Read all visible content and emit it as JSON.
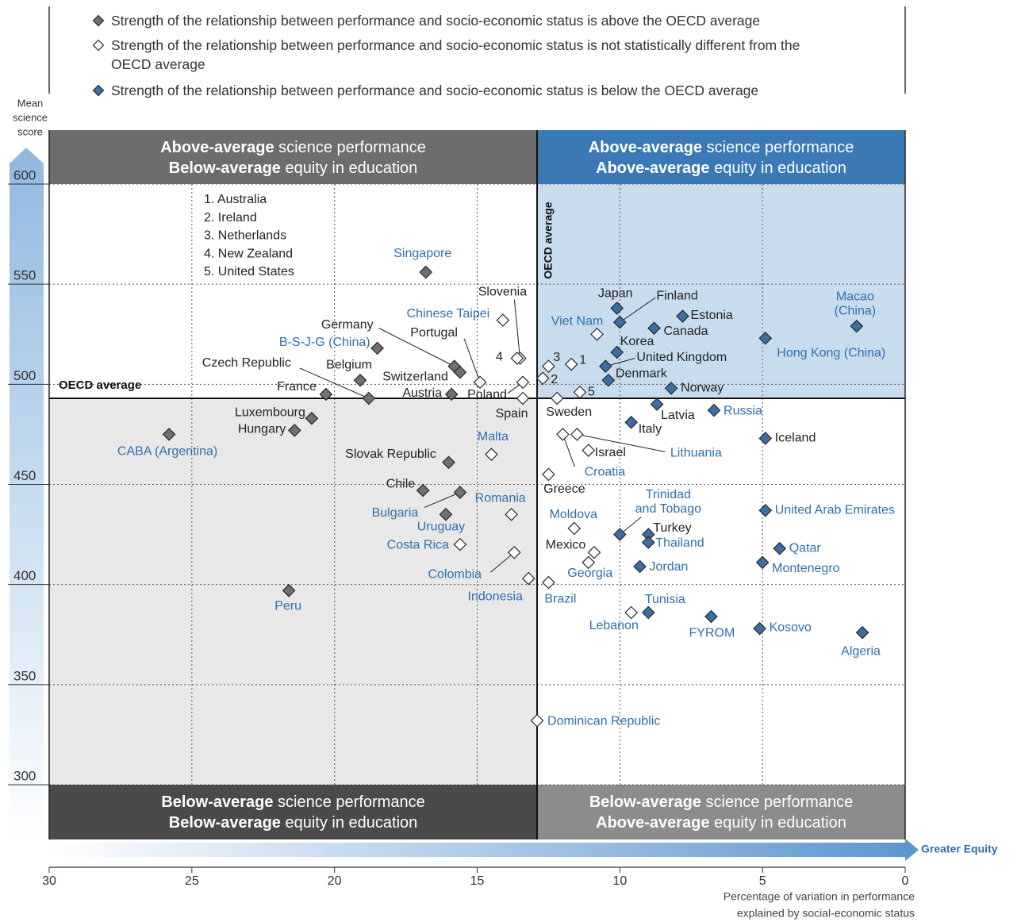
{
  "chart_data": {
    "type": "scatter",
    "legend": "top",
    "xlim": [
      30,
      0
    ],
    "xticks": [
      30,
      25,
      20,
      15,
      10,
      5,
      0
    ],
    "ylim": [
      300,
      600
    ],
    "yticks": [
      300,
      350,
      400,
      450,
      500,
      550,
      600
    ],
    "grid": true,
    "ylabel": [
      "Mean",
      "science",
      "score"
    ],
    "xlabel": [
      "Percentage of variation in performance",
      "explained by social-economic status"
    ],
    "x_arrow_label": "Greater Equity",
    "oecd_average": {
      "x": 12.9,
      "y": 493
    },
    "oecd_average_labels": {
      "horizontal": "OECD average",
      "vertical": "OECD average"
    },
    "key": [
      "1. Australia",
      "2. Ireland",
      "3. Netherlands",
      "4. New Zealand",
      "5. United States"
    ],
    "quadrants": [
      {
        "lines": [
          [
            "Above-average",
            " science performance"
          ],
          [
            "Below-average",
            " equity in education"
          ]
        ],
        "banner_color": "#6d6d6d",
        "fill": "#ffffff"
      },
      {
        "lines": [
          [
            "Above-average",
            " science performance"
          ],
          [
            "Above-average",
            " equity in education"
          ]
        ],
        "banner_color": "#3b78b6",
        "fill": "#c9dcee"
      },
      {
        "lines": [
          [
            "Below-average",
            " science performance"
          ],
          [
            "Below-average",
            " equity in education"
          ]
        ],
        "banner_color": "#4a4a4a",
        "fill": "#e8e8e8"
      },
      {
        "lines": [
          [
            "Below-average",
            " science performance"
          ],
          [
            "Above-average",
            " equity in education"
          ]
        ],
        "banner_color": "#8c8c8c",
        "fill": "#ffffff"
      }
    ],
    "series": [
      {
        "name": "Strength of the relationship between performance and socio-economic status is above the OECD average",
        "color": "#707070",
        "labels": [
          "Singapore",
          "B-S-J-G (China)",
          "Germany",
          "Switzerland",
          "Belgium",
          "Czech Republic",
          "France",
          "Austria",
          "Luxembourg",
          "Hungary",
          "CABA (Argentina)",
          "Slovak Republic",
          "Chile",
          "Bulgaria",
          "Uruguay",
          "Peru"
        ],
        "label_colors": [
          "#2f6fae",
          "#2f6fae",
          "#222222",
          "#222222",
          "#222222",
          "#222222",
          "#222222",
          "#222222",
          "#222222",
          "#222222",
          "#2f6fae",
          "#222222",
          "#222222",
          "#2f6fae",
          "#2f6fae",
          "#2f6fae"
        ],
        "x": [
          16.8,
          18.5,
          15.8,
          15.6,
          19.1,
          18.8,
          20.3,
          15.9,
          20.8,
          21.4,
          25.8,
          16.0,
          16.9,
          15.6,
          16.1,
          21.6
        ],
        "values": [
          556,
          518,
          509,
          506,
          502,
          493,
          495,
          495,
          483,
          477,
          475,
          461,
          447,
          446,
          435,
          397
        ]
      },
      {
        "name": "Strength of the relationship between performance and socio-economic status is not statistically different from the OECD average",
        "color": "#ffffff",
        "labels": [
          "Slovenia",
          "Chinese Taipei",
          "Portugal",
          "4",
          "Poland",
          "Spain",
          "2",
          "3",
          "1",
          "5",
          "Sweden",
          "Viet Nam",
          "Malta",
          "Croatia",
          "Lithuania",
          "Israel",
          "Greece",
          "Romania",
          "Moldova",
          "Costa Rica",
          "Mexico",
          "Georgia",
          "Colombia",
          "Indonesia",
          "Brazil",
          "Lebanon",
          "Dominican Republic"
        ],
        "label_colors": [
          "#222222",
          "#2f6fae",
          "#222222",
          "#222222",
          "#222222",
          "#222222",
          "#222222",
          "#222222",
          "#222222",
          "#222222",
          "#222222",
          "#2f6fae",
          "#2f6fae",
          "#2f6fae",
          "#2f6fae",
          "#222222",
          "#222222",
          "#2f6fae",
          "#2f6fae",
          "#2f6fae",
          "#222222",
          "#2f6fae",
          "#2f6fae",
          "#2f6fae",
          "#2f6fae",
          "#2f6fae",
          "#2f6fae"
        ],
        "x": [
          13.5,
          14.1,
          14.9,
          13.6,
          13.4,
          13.4,
          12.7,
          12.5,
          11.7,
          11.4,
          12.2,
          10.8,
          14.5,
          12.0,
          11.5,
          11.1,
          12.5,
          13.8,
          11.6,
          15.6,
          10.9,
          11.1,
          13.7,
          13.2,
          12.5,
          9.6,
          12.9
        ],
        "values": [
          513,
          532,
          501,
          513,
          501,
          493,
          503,
          509,
          510,
          496,
          493,
          525,
          465,
          475,
          475,
          467,
          455,
          435,
          428,
          420,
          416,
          411,
          416,
          403,
          401,
          386,
          332
        ]
      },
      {
        "name": "Strength of the relationship between performance and socio-economic status is below the OECD average",
        "color": "#3c6ea6",
        "labels": [
          "Japan",
          "Finland",
          "Estonia",
          "Canada",
          [
            "Macao",
            "(China)"
          ],
          "Korea",
          "Hong Kong (China)",
          "United Kingdom",
          "Denmark",
          "Norway",
          "Latvia",
          "Russia",
          "Italy",
          "Iceland",
          "United Arab Emirates",
          [
            "Trinidad",
            "and Tobago"
          ],
          "Turkey",
          "Thailand",
          "Qatar",
          "Montenegro",
          "Jordan",
          "Tunisia",
          "FYROM",
          "Kosovo",
          "Algeria"
        ],
        "label_colors": [
          "#222222",
          "#222222",
          "#222222",
          "#222222",
          "#2f6fae",
          "#222222",
          "#2f6fae",
          "#222222",
          "#222222",
          "#222222",
          "#222222",
          "#2f6fae",
          "#222222",
          "#222222",
          "#2f6fae",
          "#2f6fae",
          "#222222",
          "#2f6fae",
          "#2f6fae",
          "#2f6fae",
          "#2f6fae",
          "#2f6fae",
          "#2f6fae",
          "#2f6fae",
          "#2f6fae"
        ],
        "x": [
          10.1,
          10.0,
          7.8,
          8.8,
          1.7,
          10.1,
          4.9,
          10.5,
          10.4,
          8.2,
          8.7,
          6.7,
          9.6,
          4.9,
          4.9,
          10.0,
          9.0,
          9.0,
          4.4,
          5.0,
          9.3,
          9.0,
          6.8,
          5.1,
          1.5
        ],
        "values": [
          538,
          531,
          534,
          528,
          529,
          516,
          523,
          509,
          502,
          498,
          490,
          487,
          481,
          473,
          437,
          425,
          425,
          421,
          418,
          411,
          409,
          386,
          384,
          378,
          376
        ]
      }
    ]
  }
}
